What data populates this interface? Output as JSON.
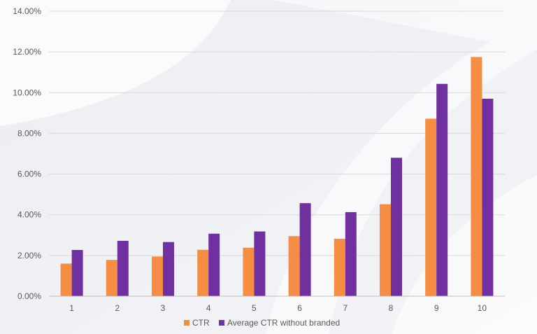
{
  "chart_data": {
    "type": "bar",
    "title": "",
    "xlabel": "",
    "ylabel": "",
    "categories": [
      "1",
      "2",
      "3",
      "4",
      "5",
      "6",
      "7",
      "8",
      "9",
      "10"
    ],
    "ylim": [
      0,
      14
    ],
    "yticks": [
      0,
      2,
      4,
      6,
      8,
      10,
      12,
      14
    ],
    "ytick_labels": [
      "0.00%",
      "2.00%",
      "4.00%",
      "6.00%",
      "8.00%",
      "10.00%",
      "12.00%",
      "14.00%"
    ],
    "grid": true,
    "legend_position": "bottom",
    "series": [
      {
        "name": "CTR",
        "color": "#f58d42",
        "values": [
          1.6,
          1.78,
          1.95,
          2.28,
          2.38,
          2.95,
          2.82,
          4.52,
          8.72,
          11.75
        ]
      },
      {
        "name": "Average CTR without branded",
        "color": "#7030a0",
        "values": [
          2.27,
          2.72,
          2.66,
          3.07,
          3.18,
          4.57,
          4.13,
          6.8,
          10.43,
          9.7
        ]
      }
    ]
  }
}
